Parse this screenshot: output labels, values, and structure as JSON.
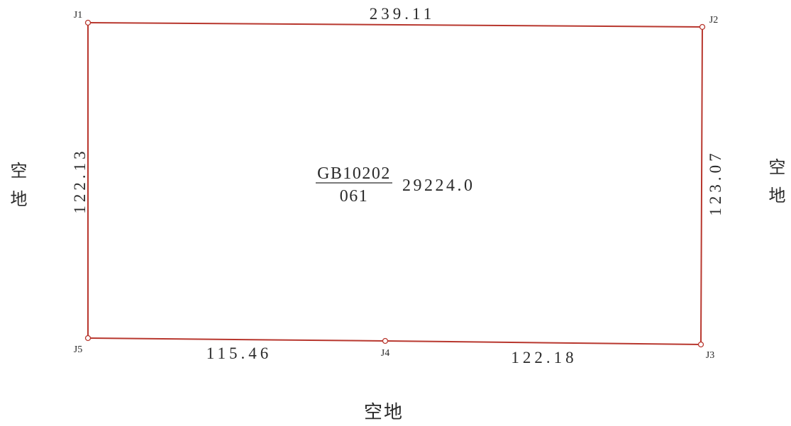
{
  "parcel": {
    "code": "GB10202",
    "sub_code": "061",
    "area": "29224.0"
  },
  "vertices": {
    "j1": "J1",
    "j2": "J2",
    "j3": "J3",
    "j4": "J4",
    "j5": "J5"
  },
  "edges": {
    "j1_j2": "239.11",
    "j1_j5": "122.13",
    "j2_j3": "123.07",
    "j5_j4": "115.46",
    "j4_j3": "122.18"
  },
  "neighbors": {
    "west": "空地",
    "east": "空地",
    "south": "空地"
  },
  "colors": {
    "boundary": "#b8372e",
    "vertex_fill": "#ffffff"
  }
}
